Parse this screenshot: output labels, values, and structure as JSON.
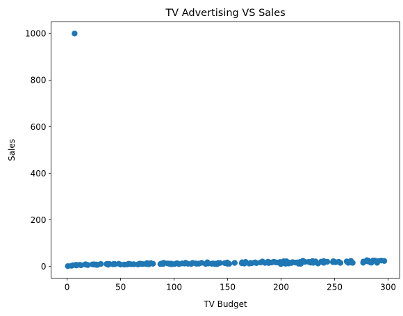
{
  "chart_data": {
    "type": "scatter",
    "title": "TV Advertising VS Sales",
    "xlabel": "TV Budget",
    "ylabel": "Sales",
    "xlim": [
      -15,
      311
    ],
    "ylim": [
      -50,
      1050
    ],
    "xticks": [
      0,
      50,
      100,
      150,
      200,
      250,
      300
    ],
    "yticks": [
      0,
      200,
      400,
      600,
      800,
      1000
    ],
    "grid": false,
    "marker_color": "#1f77b4",
    "series": [
      {
        "x": [
          0.7,
          4.1,
          5.4,
          7.8,
          8.6,
          8.7,
          11.7,
          13.1,
          16.9,
          17.2,
          18.7,
          19.4,
          23.8,
          25.0,
          25.1,
          26.8,
          27.5,
          28.6,
          31.5,
          36.9,
          38.0,
          38.2,
          39.5,
          43.0,
          43.1,
          44.5,
          44.7,
          48.3,
          50.0,
          53.5,
          56.2,
          57.5,
          59.6,
          62.3,
          66.1,
          66.9,
          67.8,
          69.0,
          70.6,
          73.4,
          74.7,
          75.1,
          75.5,
          76.3,
          76.4,
          78.2,
          80.2,
          87.2,
          88.3,
          89.7,
          90.4,
          93.9,
          95.7,
          96.2,
          97.2,
          97.5,
          100.4,
          102.7,
          104.6,
          107.4,
          109.8,
          110.7,
          112.9,
          116.0,
          117.2,
          120.2,
          121.0,
          123.1,
          125.7,
          129.4,
          131.1,
          131.7,
          135.2,
          136.2,
          137.9,
          139.2,
          139.3,
          140.3,
          141.3,
          142.9,
          147.3,
          149.7,
          149.8,
          151.5,
          156.6,
          163.3,
          163.5,
          164.5,
          165.6,
          166.8,
          170.2,
          171.3,
          172.5,
          175.1,
          175.7,
          177.0,
          180.8,
          182.6,
          184.9,
          187.8,
          188.4,
          191.1,
          193.2,
          193.7,
          195.4,
          197.6,
          198.9,
          199.1,
          199.8,
          202.5,
          204.1,
          205.0,
          206.8,
          206.9,
          209.6,
          210.7,
          210.8,
          213.4,
          214.7,
          215.4,
          216.4,
          217.7,
          218.4,
          218.5,
          219.8,
          220.3,
          222.4,
          225.8,
          227.2,
          228.0,
          228.3,
          229.5,
          230.1,
          232.1,
          234.5,
          237.4,
          239.3,
          239.8,
          239.9,
          240.1,
          243.2,
          248.4,
          248.8,
          250.9,
          253.8,
          255.4,
          261.3,
          262.7,
          262.9,
          265.2,
          265.6,
          266.9,
          276.7,
          276.9,
          280.2,
          280.7,
          281.4,
          283.6,
          284.3,
          286.0,
          287.6,
          289.7,
          290.7,
          293.6,
          296.4,
          7.0
        ],
        "y": [
          1.6,
          3.2,
          5.3,
          6.6,
          4.8,
          7.2,
          7.3,
          5.6,
          8.7,
          9.3,
          6.7,
          6.6,
          9.2,
          8.5,
          8.5,
          8.8,
          6.9,
          7.3,
          11.0,
          10.8,
          10.9,
          7.6,
          10.8,
          9.6,
          10.1,
          10.4,
          10.1,
          11.6,
          8.4,
          8.1,
          8.7,
          11.8,
          9.7,
          9.7,
          8.6,
          9.7,
          12.5,
          11.3,
          10.5,
          10.9,
          14.7,
          12.6,
          9.9,
          12.0,
          9.4,
          14.6,
          11.8,
          10.6,
          12.9,
          10.8,
          15.9,
          13.2,
          11.4,
          11.9,
          12.3,
          9.7,
          10.7,
          14.0,
          10.4,
          13.2,
          12.4,
          16.0,
          11.6,
          11.0,
          15.3,
          13.2,
          11.6,
          12.2,
          15.9,
          11.0,
          18.0,
          12.9,
          11.7,
          13.2,
          11.2,
          12.2,
          10.3,
          10.3,
          15.5,
          15.0,
          14.6,
          17.3,
          11.8,
          11.6,
          15.5,
          14.0,
          18.0,
          14.5,
          12.6,
          19.6,
          12.5,
          15.2,
          14.4,
          16.6,
          17.5,
          14.8,
          17.4,
          21.2,
          15.5,
          20.6,
          14.9,
          17.3,
          20.2,
          19.2,
          17.6,
          16.7,
          19.2,
          18.3,
          10.6,
          22.6,
          11.9,
          22.3,
          12.9,
          17.2,
          15.2,
          18.4,
          18.4,
          17.0,
          17.4,
          17.1,
          12.2,
          19.4,
          11.8,
          18.0,
          19.6,
          24.7,
          19.8,
          19.8,
          17.2,
          16.5,
          20.7,
          23.2,
          15.8,
          21.6,
          12.9,
          20.7,
          18.9,
          15.9,
          23.2,
          18.4,
          20.2,
          18.9,
          22.6,
          18.5,
          20.2,
          15.5,
          21.8,
          15.9,
          17.0,
          24.2,
          16.9,
          15.8,
          16.2,
          20.9,
          27.0,
          22.3,
          25.4,
          17.5,
          16.4,
          25.8,
          25.4,
          15.9,
          23.1,
          25.4,
          23.8,
          1000
        ]
      }
    ]
  }
}
